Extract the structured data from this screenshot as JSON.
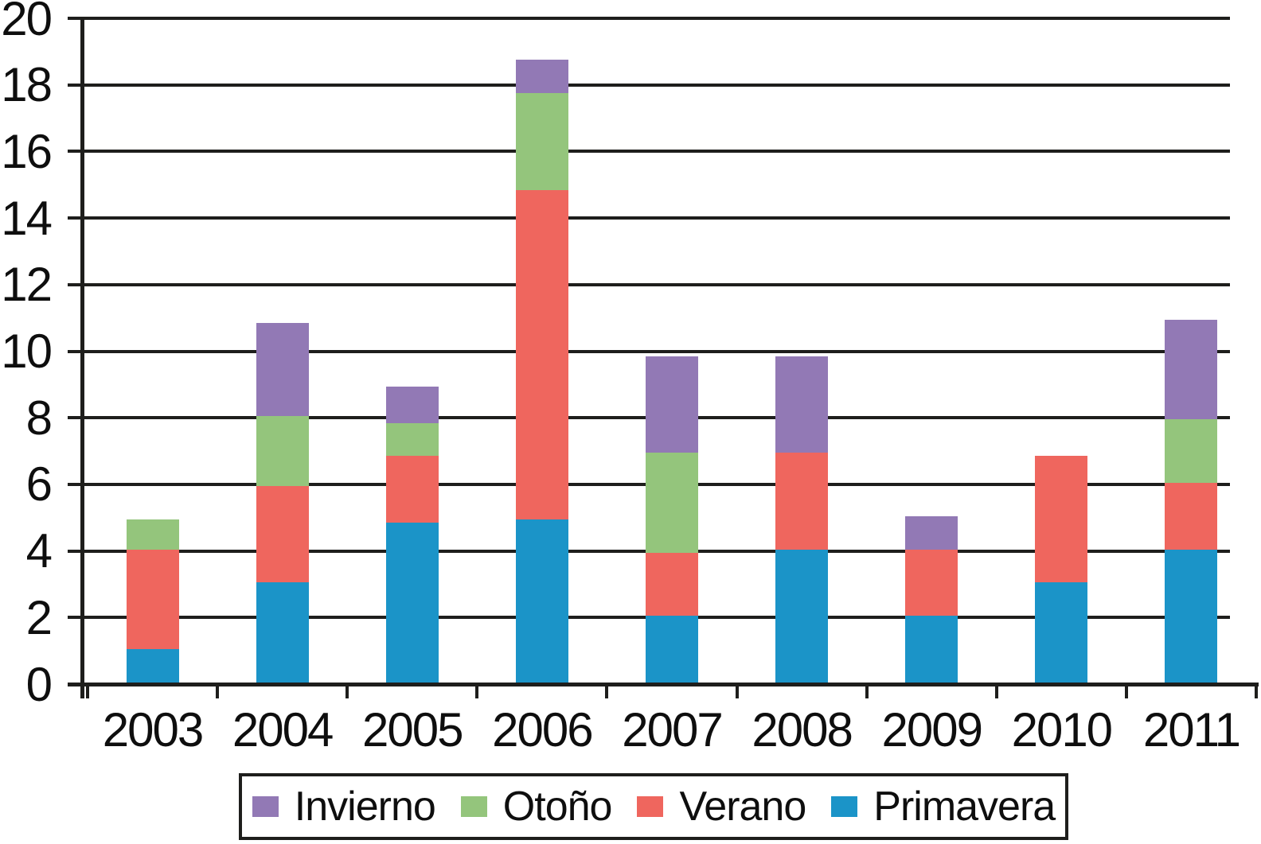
{
  "chart_data": {
    "type": "bar",
    "stacked": true,
    "title": "",
    "xlabel": "",
    "ylabel": "",
    "categories": [
      "2003",
      "2004",
      "2005",
      "2006",
      "2007",
      "2008",
      "2009",
      "2010",
      "2011"
    ],
    "series": [
      {
        "name": "Primavera",
        "color": "#1B94C8",
        "values": [
          1.0,
          3.0,
          4.8,
          4.9,
          2.0,
          4.0,
          2.0,
          3.0,
          4.0
        ]
      },
      {
        "name": "Verano",
        "color": "#EF665E",
        "values": [
          3.0,
          2.9,
          2.0,
          9.9,
          1.9,
          2.9,
          2.0,
          3.8,
          2.0
        ]
      },
      {
        "name": "Otoño",
        "color": "#94C57C",
        "values": [
          0.9,
          2.1,
          1.0,
          2.9,
          3.0,
          0.0,
          0.0,
          0.0,
          1.9
        ]
      },
      {
        "name": "Invierno",
        "color": "#9279B5",
        "values": [
          0.0,
          2.8,
          1.1,
          1.0,
          2.9,
          2.9,
          1.0,
          0.0,
          3.0
        ]
      }
    ],
    "stack_order_bottom_to_top": [
      "Primavera",
      "Verano",
      "Otoño",
      "Invierno"
    ],
    "legend_order": [
      "Invierno",
      "Otoño",
      "Verano",
      "Primavera"
    ],
    "legend_position": "bottom",
    "y_ticks": [
      0,
      2,
      4,
      6,
      8,
      10,
      12,
      14,
      16,
      18,
      20
    ],
    "ylim": [
      0,
      20
    ],
    "grid": true
  },
  "colors": {
    "axis": "#1e1e1c",
    "text": "#0e0e0e",
    "background": "#ffffff"
  }
}
